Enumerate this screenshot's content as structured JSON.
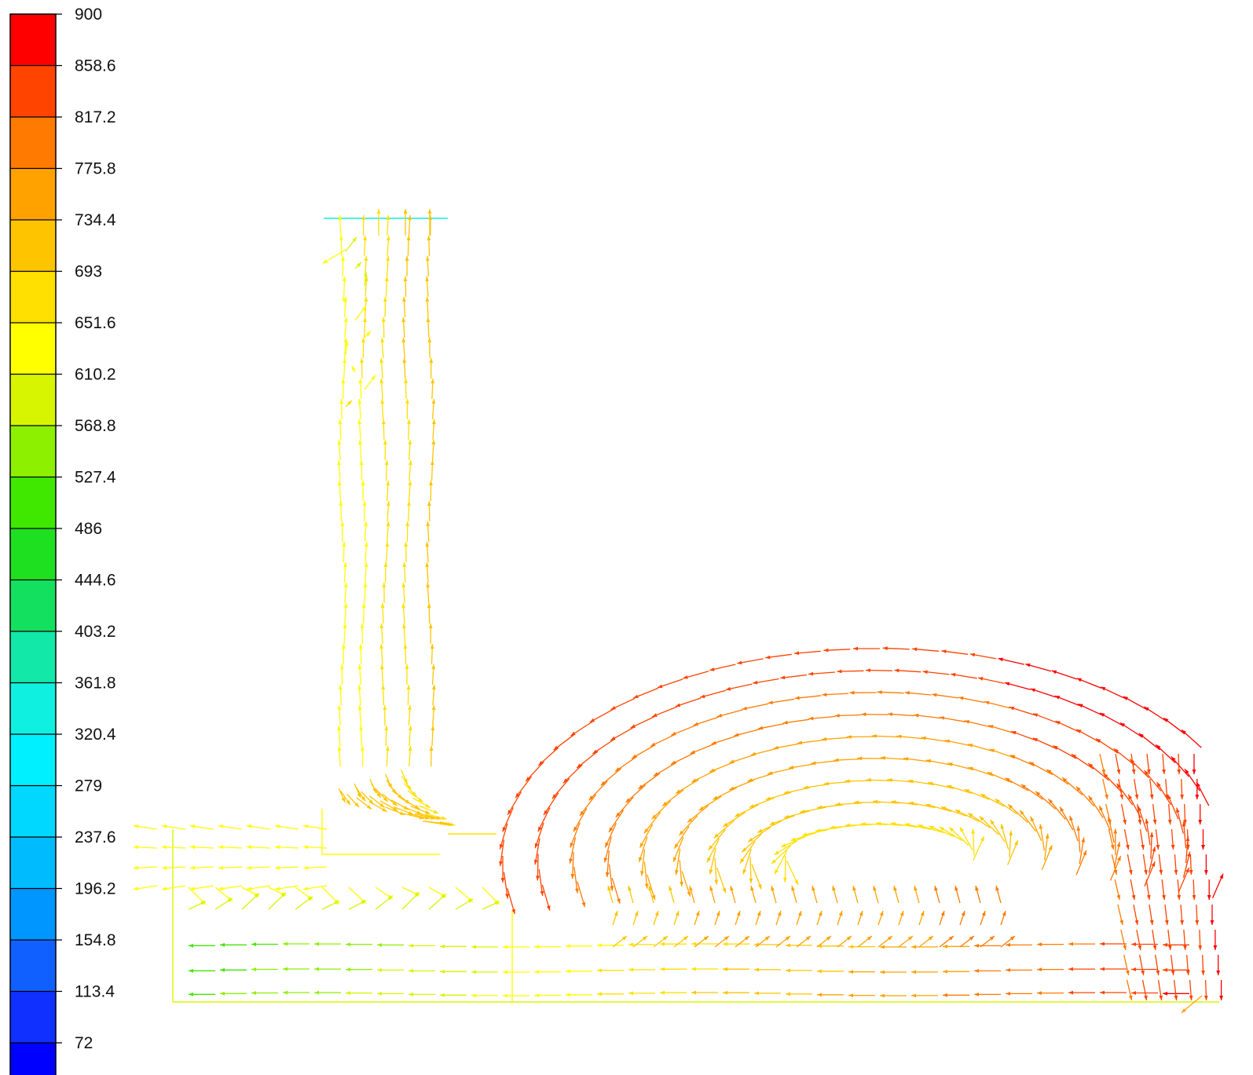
{
  "chart_data": {
    "type": "vector-field",
    "title": "",
    "xlabel": "",
    "ylabel": "",
    "colorbar": {
      "min": 72,
      "max": 900,
      "tick_labels": [
        "900",
        "858.6",
        "817.2",
        "775.8",
        "734.4",
        "693",
        "651.6",
        "610.2",
        "568.8",
        "527.4",
        "486",
        "444.6",
        "403.2",
        "361.8",
        "320.4",
        "279",
        "237.6",
        "196.2",
        "154.8",
        "113.4",
        "72"
      ],
      "band_colors": [
        "#ff0000",
        "#ff4400",
        "#ff7a00",
        "#ffa200",
        "#ffc400",
        "#ffe000",
        "#ffff00",
        "#d8f500",
        "#8cf000",
        "#40e800",
        "#1ee020",
        "#14e060",
        "#12e8a8",
        "#10f0e0",
        "#00f0ff",
        "#00d8ff",
        "#00bcff",
        "#0096ff",
        "#1060ff",
        "#1030ff",
        "#0000ff"
      ]
    }
  }
}
